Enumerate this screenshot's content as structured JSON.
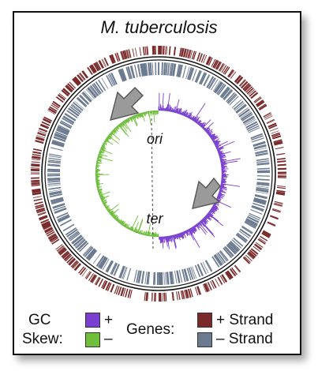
{
  "title": "M. tuberculosis",
  "labels": {
    "ori": "ori",
    "ter": "ter"
  },
  "legend": {
    "gc": "GC",
    "skew": "Skew:",
    "plus": "+",
    "minus": "–",
    "genes": "Genes:",
    "plus_strand": "+ Strand",
    "minus_strand": "– Strand"
  },
  "colors": {
    "gc_plus": "#7a3fd0",
    "gc_minus": "#6fbf3a",
    "plus_strand": "#7a2a2a",
    "minus_strand": "#6c7a90",
    "arrow": "#999999"
  }
}
